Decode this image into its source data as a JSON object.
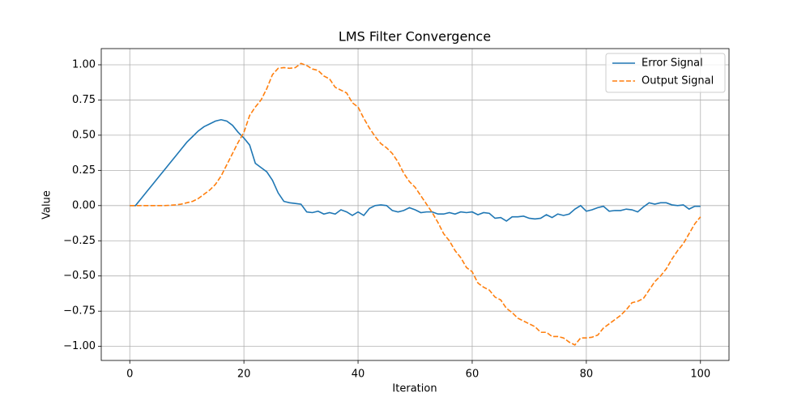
{
  "chart_data": {
    "type": "line",
    "title": "LMS Filter Convergence",
    "x_label": "Iteration",
    "y_label": "Value",
    "x": [
      0,
      1,
      2,
      3,
      4,
      5,
      6,
      7,
      8,
      9,
      10,
      11,
      12,
      13,
      14,
      15,
      16,
      17,
      18,
      19,
      20,
      21,
      22,
      23,
      24,
      25,
      26,
      27,
      28,
      29,
      30,
      31,
      32,
      33,
      34,
      35,
      36,
      37,
      38,
      39,
      40,
      41,
      42,
      43,
      44,
      45,
      46,
      47,
      48,
      49,
      50,
      51,
      52,
      53,
      54,
      55,
      56,
      57,
      58,
      59,
      60,
      61,
      62,
      63,
      64,
      65,
      66,
      67,
      68,
      69,
      70,
      71,
      72,
      73,
      74,
      75,
      76,
      77,
      78,
      79,
      80,
      81,
      82,
      83,
      84,
      85,
      86,
      87,
      88,
      89,
      90,
      91,
      92,
      93,
      94,
      95,
      96,
      97,
      98,
      99,
      100
    ],
    "series": [
      {
        "name": "Error Signal",
        "color": "#1f77b4",
        "linestyle": "solid",
        "values": [
          0,
          0,
          0.05,
          0.1,
          0.15,
          0.2,
          0.25,
          0.3,
          0.35,
          0.4,
          0.45,
          0.49,
          0.53,
          0.56,
          0.58,
          0.6,
          0.61,
          0.6,
          0.57,
          0.52,
          0.48,
          0.43,
          0.3,
          0.27,
          0.24,
          0.18,
          0.09,
          0.03,
          0.02,
          0.015,
          0.01,
          -0.045,
          -0.05,
          -0.04,
          -0.06,
          -0.05,
          -0.06,
          -0.03,
          -0.045,
          -0.07,
          -0.045,
          -0.07,
          -0.02,
          0,
          0.005,
          0,
          -0.035,
          -0.045,
          -0.035,
          -0.015,
          -0.03,
          -0.05,
          -0.045,
          -0.045,
          -0.06,
          -0.06,
          -0.05,
          -0.06,
          -0.045,
          -0.05,
          -0.045,
          -0.065,
          -0.05,
          -0.055,
          -0.09,
          -0.085,
          -0.11,
          -0.08,
          -0.08,
          -0.075,
          -0.09,
          -0.095,
          -0.09,
          -0.065,
          -0.085,
          -0.06,
          -0.07,
          -0.06,
          -0.025,
          0,
          -0.04,
          -0.03,
          -0.015,
          -0.005,
          -0.04,
          -0.035,
          -0.035,
          -0.025,
          -0.03,
          -0.045,
          -0.01,
          0.02,
          0.01,
          0.02,
          0.02,
          0.005,
          0,
          0.005,
          -0.025,
          -0.005,
          -0.005
        ]
      },
      {
        "name": "Output Signal",
        "color": "#ff7f0e",
        "linestyle": "dashed",
        "values": [
          0,
          0,
          0,
          0,
          0,
          0,
          0,
          0.002,
          0.005,
          0.01,
          0.02,
          0.03,
          0.05,
          0.08,
          0.11,
          0.15,
          0.21,
          0.29,
          0.37,
          0.45,
          0.52,
          0.64,
          0.7,
          0.75,
          0.83,
          0.93,
          0.975,
          0.98,
          0.975,
          0.98,
          1.01,
          0.995,
          0.97,
          0.96,
          0.92,
          0.9,
          0.84,
          0.82,
          0.8,
          0.73,
          0.7,
          0.62,
          0.55,
          0.49,
          0.44,
          0.41,
          0.37,
          0.31,
          0.23,
          0.17,
          0.13,
          0.07,
          0.01,
          -0.05,
          -0.12,
          -0.2,
          -0.25,
          -0.32,
          -0.37,
          -0.44,
          -0.47,
          -0.55,
          -0.58,
          -0.6,
          -0.65,
          -0.67,
          -0.73,
          -0.76,
          -0.8,
          -0.82,
          -0.84,
          -0.86,
          -0.9,
          -0.9,
          -0.93,
          -0.93,
          -0.94,
          -0.97,
          -0.99,
          -0.94,
          -0.94,
          -0.935,
          -0.92,
          -0.87,
          -0.84,
          -0.81,
          -0.78,
          -0.74,
          -0.69,
          -0.68,
          -0.66,
          -0.6,
          -0.54,
          -0.5,
          -0.45,
          -0.38,
          -0.32,
          -0.27,
          -0.2,
          -0.13,
          -0.08
        ]
      }
    ],
    "xlim": [
      -5,
      105
    ],
    "ylim": [
      -1.1,
      1.115
    ],
    "xticks": [
      0,
      20,
      40,
      60,
      80,
      100
    ],
    "yticks": [
      {
        "value": -1,
        "label": "−1.00"
      },
      {
        "value": -0.75,
        "label": "−0.75"
      },
      {
        "value": -0.5,
        "label": "−0.50"
      },
      {
        "value": -0.25,
        "label": "−0.25"
      },
      {
        "value": 0,
        "label": "0.00"
      },
      {
        "value": 0.25,
        "label": "0.25"
      },
      {
        "value": 0.5,
        "label": "0.50"
      },
      {
        "value": 0.75,
        "label": "0.75"
      },
      {
        "value": 1,
        "label": "1.00"
      }
    ],
    "grid": true,
    "legend": "upper right"
  }
}
